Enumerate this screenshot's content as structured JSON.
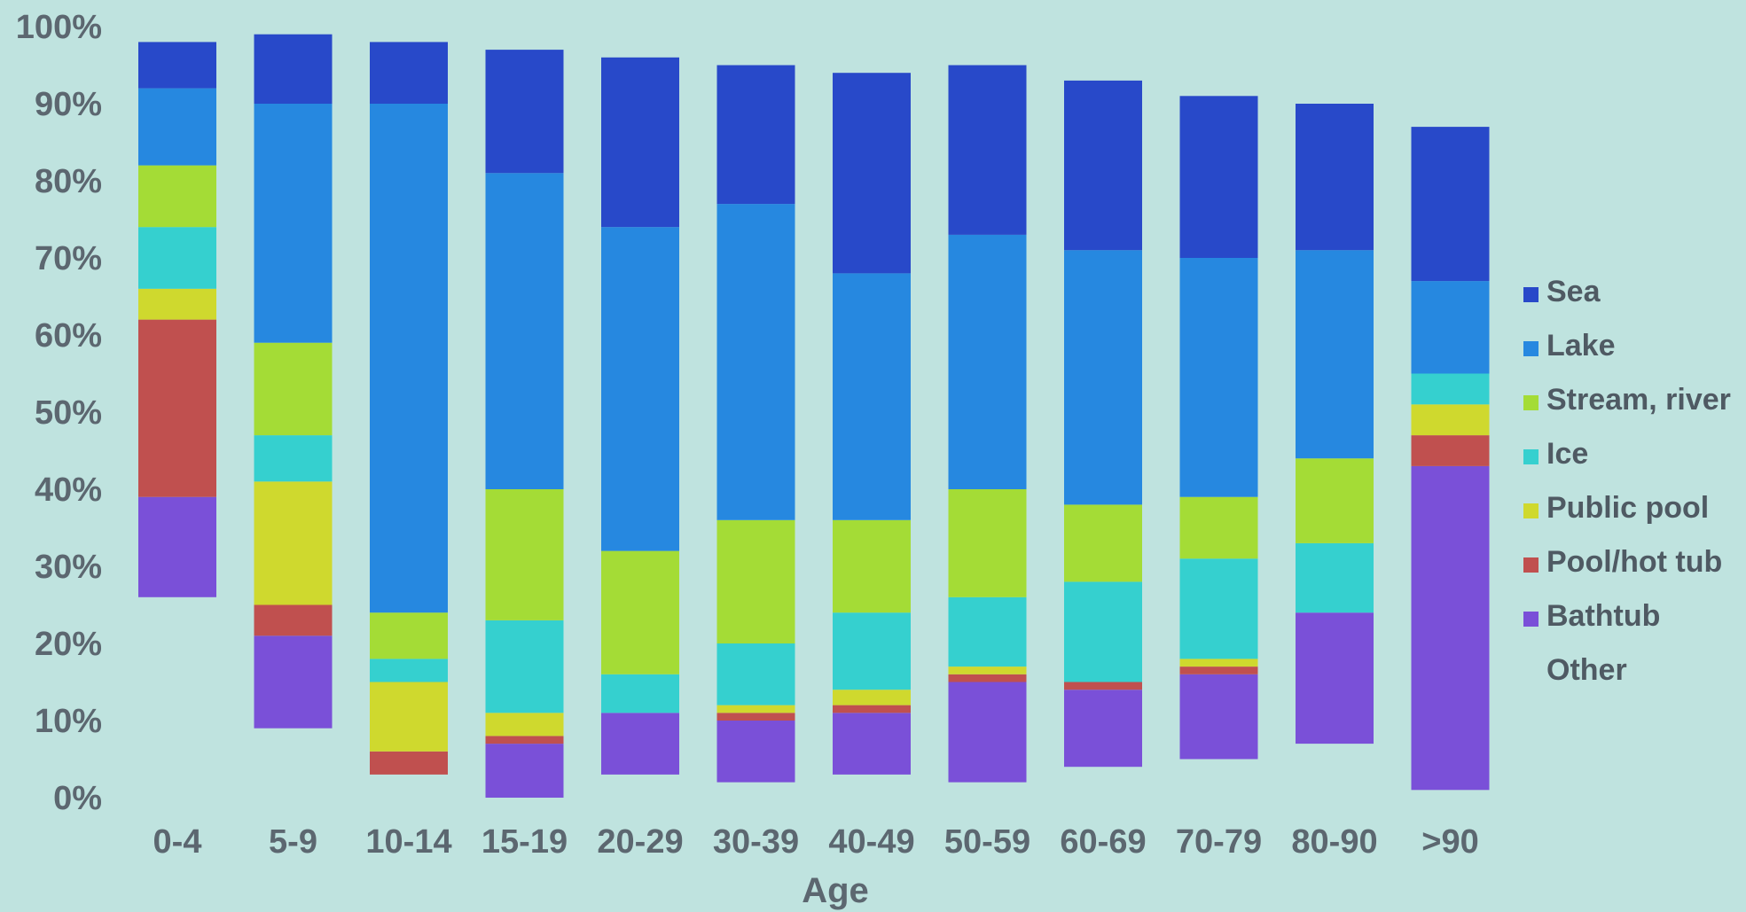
{
  "chart_data": {
    "type": "bar",
    "stacked": true,
    "categories": [
      "0-4",
      "5-9",
      "10-14",
      "15-19",
      "20-29",
      "30-39",
      "40-49",
      "50-59",
      "60-69",
      "70-79",
      "80-90",
      ">90"
    ],
    "xlabel": "Age",
    "ylabel": "",
    "ylim": [
      0,
      100
    ],
    "yticks": [
      "0%",
      "10%",
      "20%",
      "30%",
      "40%",
      "50%",
      "60%",
      "70%",
      "80%",
      "90%",
      "100%"
    ],
    "legend_position": "right",
    "series": [
      {
        "name": "Bathtub",
        "color": "#7a50d8",
        "values": [
          13,
          12,
          0,
          7,
          8,
          8,
          8,
          13,
          10,
          11,
          17,
          42
        ]
      },
      {
        "name": "Pool/hot tub",
        "color": "#c0504f",
        "values": [
          23,
          4,
          3,
          1,
          0,
          1,
          1,
          1,
          1,
          1,
          0,
          4
        ]
      },
      {
        "name": "Public pool",
        "color": "#cfd92e",
        "values": [
          4,
          16,
          9,
          3,
          0,
          1,
          2,
          1,
          0,
          1,
          0,
          4
        ]
      },
      {
        "name": "Ice",
        "color": "#35d0cf",
        "values": [
          8,
          6,
          3,
          12,
          5,
          8,
          10,
          9,
          13,
          13,
          9,
          4
        ]
      },
      {
        "name": "Stream, river",
        "color": "#a4dc36",
        "values": [
          8,
          12,
          6,
          17,
          16,
          16,
          12,
          14,
          10,
          8,
          11,
          0
        ]
      },
      {
        "name": "Lake",
        "color": "#2688e0",
        "values": [
          10,
          31,
          66,
          41,
          42,
          41,
          32,
          33,
          33,
          31,
          27,
          12
        ]
      },
      {
        "name": "Sea",
        "color": "#2849c9",
        "values": [
          6,
          9,
          8,
          16,
          22,
          18,
          26,
          22,
          22,
          21,
          19,
          20
        ]
      }
    ],
    "bar_bottoms": [
      26,
      9,
      3,
      0,
      3,
      2,
      3,
      2,
      4,
      5,
      7,
      1
    ],
    "legend_entries": [
      "Sea",
      "Lake",
      "Stream, river",
      "Ice",
      "Public pool",
      "Pool/hot tub",
      "Bathtub",
      "Other"
    ],
    "legend_colors": [
      "#2849c9",
      "#2688e0",
      "#a4dc36",
      "#35d0cf",
      "#cfd92e",
      "#c0504f",
      "#7a50d8",
      ""
    ]
  }
}
